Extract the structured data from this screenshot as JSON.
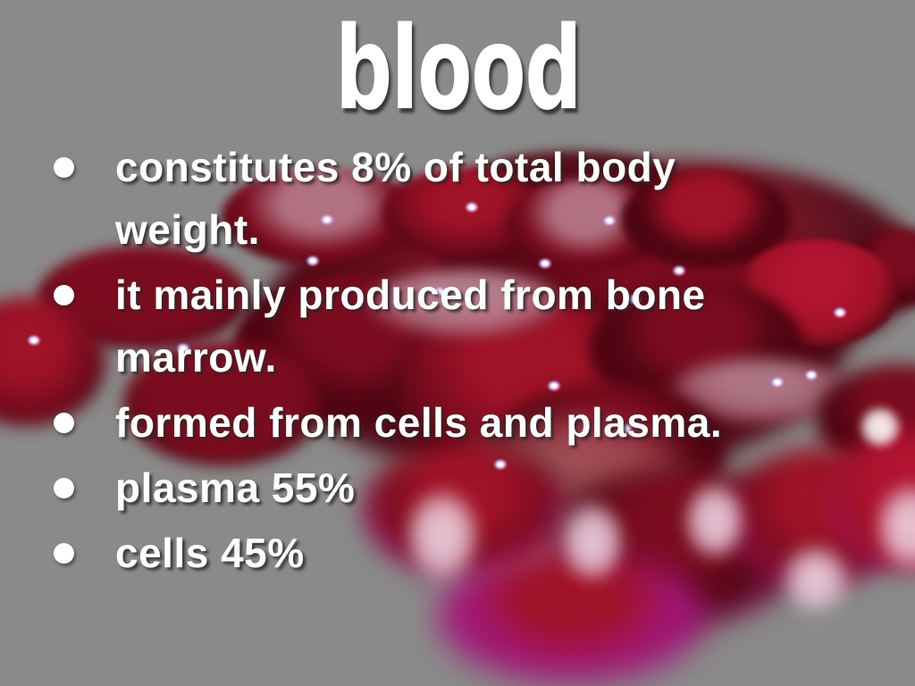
{
  "slide": {
    "title": "blood"
  },
  "bullets": [
    {
      "lines": [
        "constitutes 8% of total body",
        "weight."
      ]
    },
    {
      "lines": [
        "it mainly produced from bone",
        "marrow."
      ]
    },
    {
      "lines": [
        "formed from cells and plasma."
      ]
    },
    {
      "lines": [
        "plasma 55%"
      ]
    },
    {
      "lines": [
        "cells 45%"
      ]
    }
  ],
  "colors": {
    "background_gray": "#8a8a8a",
    "text_white": "#ffffff",
    "text_shadow": "#282828",
    "cell_dark_red": "#4f0512",
    "cell_red": "#7b0c1f",
    "cell_crimson": "#a01226",
    "cell_bright_crimson": "#b11331",
    "cell_pink_top": "#b07181",
    "cell_dusty_pink": "#c491a0",
    "blur_magenta": "#a21678",
    "haze_peach": "#c9908d",
    "bokeh_pink": "#eed3e2",
    "specular_white": "#ffffff",
    "specular_ring": "#c9a2ff"
  }
}
